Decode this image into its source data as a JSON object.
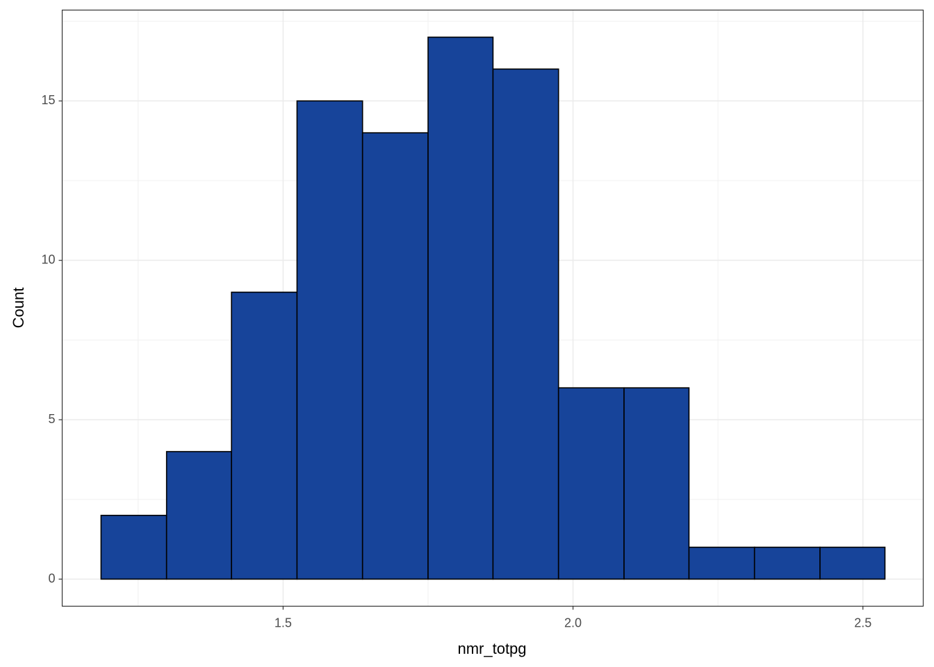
{
  "chart_data": {
    "type": "histogram",
    "x_label": "nmr_totpg",
    "y_label": "Count",
    "bins": [
      1.186,
      1.299,
      1.411,
      1.524,
      1.637,
      1.75,
      1.862,
      1.975,
      2.088,
      2.2,
      2.313,
      2.426,
      2.538
    ],
    "values": [
      2,
      4,
      9,
      15,
      14,
      17,
      16,
      6,
      6,
      1,
      1,
      1
    ],
    "color": "#17449a",
    "edge_color": "#000000",
    "xlim": [
      1.119,
      2.604
    ],
    "ylim": [
      -0.85,
      17.85
    ],
    "xticks": [
      {
        "value": 1.5,
        "label": "1.5"
      },
      {
        "value": 2.0,
        "label": "2.0"
      },
      {
        "value": 2.5,
        "label": "2.5"
      }
    ],
    "yticks": [
      0,
      5,
      10,
      15
    ],
    "minor_xticks": [
      1.25,
      1.75,
      2.25
    ],
    "minor_yticks": [
      2.5,
      7.5,
      12.5,
      17.5
    ],
    "grid": true
  }
}
